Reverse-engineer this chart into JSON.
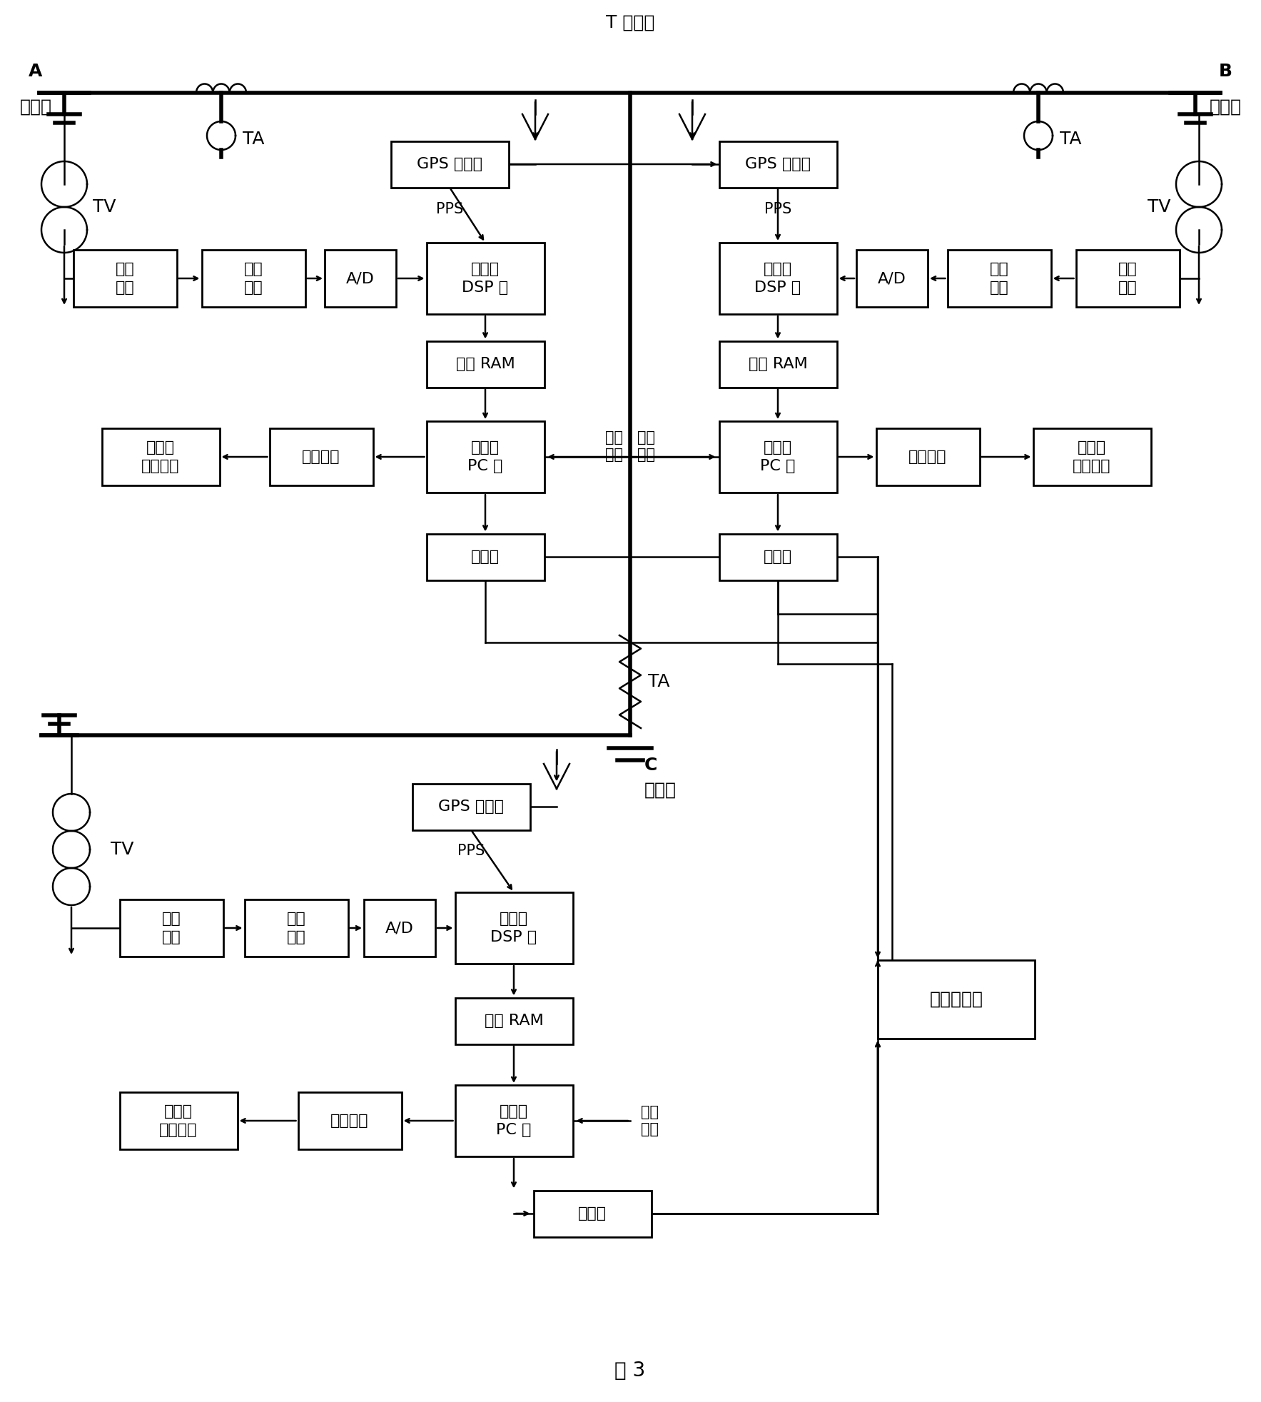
{
  "title": "T 型线路",
  "fig_label": "图 3",
  "A_label": "A",
  "A_sub": "变电站",
  "B_label": "B",
  "B_sub": "变电站",
  "C_label": "C",
  "C_sub": "变电站",
  "TA": "TA",
  "TV": "TV",
  "PPS": "PPS",
  "GPS": "GPS 接受机",
  "DSP": "嵌入式\nDSP 卡",
  "RAM": "双口 RAM",
  "PC": "嵌入式\nPC 卡",
  "KAI": "开出量卡",
  "DLQ": "断路器\n跳闸信号",
  "ETH": "以太网",
  "GeLi": "隔离\n变换",
  "MoNi": "模拟\n滤波",
  "AD": "A/D",
  "TIME": "时间\n信息",
  "CENTER": "中心计算机"
}
